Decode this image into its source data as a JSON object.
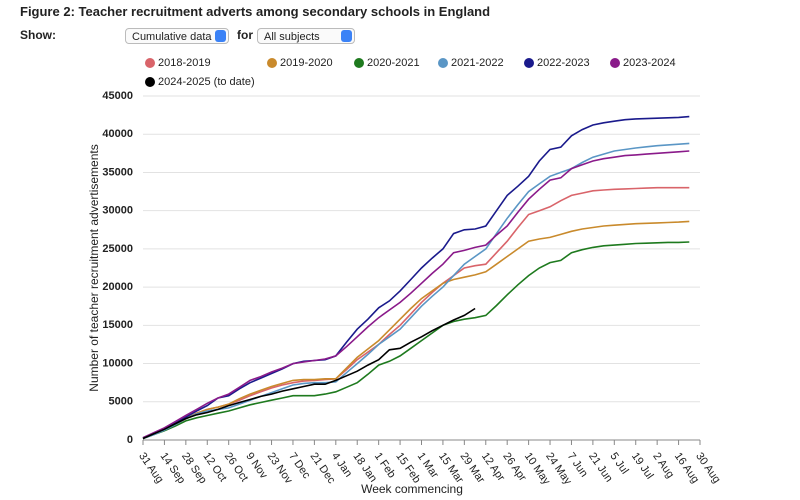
{
  "chart_data": {
    "type": "line",
    "title": "Figure 2: Teacher recruitment adverts among secondary schools in England",
    "controls": {
      "show_label": "Show:",
      "show_value": "Cumulative data",
      "for_label": "for",
      "for_value": "All subjects"
    },
    "ylabel": "Number of teacher recruitment advertisements",
    "xlabel": "Week commencing",
    "categories": [
      "31 Aug",
      null,
      "14 Sep",
      null,
      "28 Sep",
      null,
      "12 Oct",
      null,
      "26 Oct",
      null,
      "9 Nov",
      null,
      "23 Nov",
      null,
      "7 Dec",
      null,
      "21 Dec",
      null,
      "4 Jan",
      null,
      "18 Jan",
      null,
      "1 Feb",
      null,
      "15 Feb",
      null,
      "1 Mar",
      null,
      "15 Mar",
      null,
      "29 Mar",
      null,
      "12 Apr",
      null,
      "26 Apr",
      null,
      "10 May",
      null,
      "24 May",
      null,
      "7 Jun",
      null,
      "21 Jun",
      null,
      "5 Jul",
      null,
      "19 Jul",
      null,
      "2 Aug",
      null,
      "16 Aug",
      null,
      "30 Aug"
    ],
    "ylim": [
      0,
      45000
    ],
    "yticks": [
      0,
      5000,
      10000,
      15000,
      20000,
      25000,
      30000,
      35000,
      40000,
      45000
    ],
    "grid": true,
    "series": [
      {
        "name": "2018-2019",
        "color": "#d9646a",
        "values": [
          200,
          800,
          1400,
          2100,
          2800,
          3500,
          4000,
          4300,
          4700,
          5200,
          5800,
          6300,
          6800,
          7200,
          7500,
          7700,
          7800,
          7900,
          8000,
          9200,
          10500,
          11500,
          12500,
          13800,
          15000,
          16500,
          18000,
          19300,
          20500,
          21500,
          22500,
          22800,
          23000,
          24500,
          26000,
          27800,
          29500,
          30000,
          30500,
          31300,
          32000,
          32300,
          32600,
          32700,
          32800,
          32850,
          32900,
          32950,
          33000,
          33000,
          33000,
          33000,
          null
        ]
      },
      {
        "name": "2019-2020",
        "color": "#c98a2c",
        "values": [
          200,
          800,
          1400,
          2100,
          2800,
          3500,
          4000,
          4300,
          4700,
          5400,
          6000,
          6500,
          7000,
          7400,
          7800,
          7900,
          7900,
          8000,
          8000,
          9400,
          10800,
          11900,
          13000,
          14400,
          15800,
          17200,
          18500,
          19500,
          20500,
          21000,
          21300,
          21600,
          22000,
          23000,
          24000,
          25000,
          26000,
          26300,
          26500,
          26900,
          27300,
          27600,
          27800,
          28000,
          28100,
          28200,
          28300,
          28350,
          28400,
          28450,
          28500,
          28600,
          null
        ]
      },
      {
        "name": "2020-2021",
        "color": "#1e7a1e",
        "values": [
          200,
          700,
          1200,
          1800,
          2500,
          2900,
          3200,
          3500,
          3800,
          4200,
          4600,
          4900,
          5200,
          5500,
          5800,
          5800,
          5800,
          6000,
          6300,
          6900,
          7500,
          8600,
          9800,
          10300,
          11000,
          12000,
          13000,
          14000,
          15000,
          15500,
          15800,
          16000,
          16300,
          17600,
          19000,
          20300,
          21500,
          22500,
          23200,
          23500,
          24500,
          24900,
          25200,
          25400,
          25500,
          25600,
          25700,
          25750,
          25800,
          25850,
          25850,
          25900,
          null
        ]
      },
      {
        "name": "2021-2022",
        "color": "#5a96c5",
        "values": [
          200,
          700,
          1300,
          2000,
          2800,
          3400,
          3800,
          4000,
          4200,
          4700,
          5200,
          5700,
          6200,
          6700,
          7200,
          7400,
          7500,
          7500,
          7600,
          8800,
          10000,
          11200,
          12500,
          13500,
          14500,
          16000,
          17500,
          18800,
          20000,
          21500,
          23000,
          24000,
          25000,
          27000,
          29000,
          30800,
          32500,
          33500,
          34500,
          35000,
          35500,
          36300,
          37000,
          37400,
          37800,
          38000,
          38200,
          38350,
          38500,
          38600,
          38700,
          38800,
          null
        ]
      },
      {
        "name": "2022-2023",
        "color": "#1a1a8c",
        "values": [
          300,
          900,
          1500,
          2200,
          3000,
          3800,
          4500,
          5500,
          5800,
          6700,
          7500,
          8100,
          8700,
          9300,
          10000,
          10300,
          10400,
          10500,
          11000,
          12800,
          14500,
          15800,
          17300,
          18200,
          19500,
          21000,
          22500,
          23800,
          25000,
          27000,
          27500,
          27600,
          28000,
          30000,
          32000,
          33200,
          34500,
          36500,
          38000,
          38300,
          39800,
          40600,
          41200,
          41500,
          41700,
          41900,
          42000,
          42050,
          42100,
          42150,
          42200,
          42300,
          null
        ]
      },
      {
        "name": "2023-2024",
        "color": "#8a1a8a",
        "values": [
          300,
          950,
          1600,
          2400,
          3200,
          4000,
          4800,
          5500,
          6000,
          6900,
          7800,
          8300,
          8900,
          9400,
          10000,
          10200,
          10400,
          10600,
          11000,
          12200,
          13500,
          14800,
          16000,
          17000,
          18000,
          19200,
          20500,
          21800,
          23000,
          24500,
          24800,
          25200,
          25500,
          26800,
          28000,
          29800,
          31500,
          32800,
          34000,
          34300,
          35500,
          36000,
          36500,
          36800,
          37000,
          37200,
          37300,
          37400,
          37500,
          37600,
          37700,
          37800,
          null
        ]
      },
      {
        "name": "2024-2025 (to date)",
        "color": "#000000",
        "values": [
          200,
          800,
          1400,
          2100,
          2800,
          3300,
          3600,
          4000,
          4500,
          4900,
          5300,
          5700,
          6000,
          6400,
          6700,
          7000,
          7300,
          7300,
          7800,
          8400,
          9000,
          9800,
          10500,
          11800,
          12000,
          12800,
          13500,
          14300,
          15000,
          15700,
          16300,
          17200,
          null,
          null,
          null,
          null,
          null,
          null,
          null,
          null,
          null,
          null,
          null,
          null,
          null,
          null,
          null,
          null,
          null,
          null,
          null,
          null,
          null
        ]
      }
    ]
  }
}
